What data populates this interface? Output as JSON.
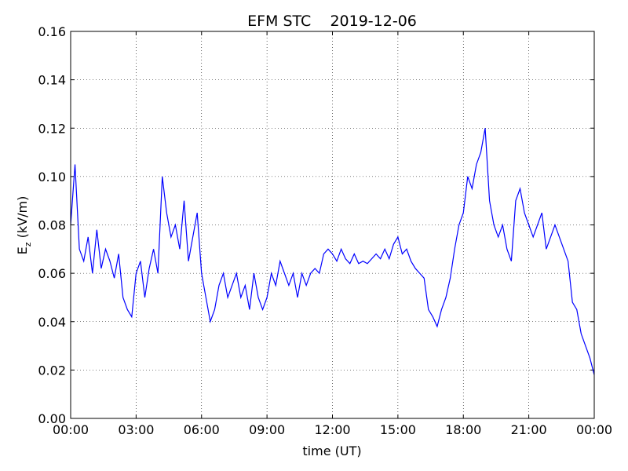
{
  "chart_data": {
    "type": "line",
    "title": "EFM STC    2019-12-06",
    "xlabel": "time (UT)",
    "ylabel": {
      "base": "E",
      "subscript": "z",
      "rest": " (kV/m)"
    },
    "x": [
      0,
      0.2,
      0.4,
      0.6,
      0.8,
      1,
      1.2,
      1.4,
      1.6,
      1.8,
      2,
      2.2,
      2.4,
      2.6,
      2.8,
      3,
      3.2,
      3.4,
      3.6,
      3.8,
      4,
      4.2,
      4.4,
      4.6,
      4.8,
      5,
      5.2,
      5.4,
      5.6,
      5.8,
      6,
      6.2,
      6.4,
      6.6,
      6.8,
      7,
      7.2,
      7.4,
      7.6,
      7.8,
      8,
      8.2,
      8.4,
      8.6,
      8.8,
      9,
      9.2,
      9.4,
      9.6,
      9.8,
      10,
      10.2,
      10.4,
      10.6,
      10.8,
      11,
      11.2,
      11.4,
      11.6,
      11.8,
      12,
      12.2,
      12.4,
      12.6,
      12.8,
      13,
      13.2,
      13.4,
      13.6,
      13.8,
      14,
      14.2,
      14.4,
      14.6,
      14.8,
      15,
      15.2,
      15.4,
      15.6,
      15.8,
      16,
      16.2,
      16.4,
      16.6,
      16.8,
      17,
      17.2,
      17.4,
      17.6,
      17.8,
      18,
      18.2,
      18.4,
      18.6,
      18.8,
      19,
      19.2,
      19.4,
      19.6,
      19.8,
      20,
      20.2,
      20.4,
      20.6,
      20.8,
      21,
      21.2,
      21.4,
      21.6,
      21.8,
      22,
      22.2,
      22.4,
      22.6,
      22.8,
      23,
      23.2,
      23.4,
      23.6,
      23.8,
      24
    ],
    "series": [
      {
        "name": "Ez",
        "color": "#0000ff",
        "values": [
          0.08,
          0.105,
          0.07,
          0.065,
          0.075,
          0.06,
          0.078,
          0.062,
          0.07,
          0.065,
          0.058,
          0.068,
          0.05,
          0.045,
          0.042,
          0.06,
          0.065,
          0.05,
          0.062,
          0.07,
          0.06,
          0.1,
          0.085,
          0.075,
          0.08,
          0.07,
          0.09,
          0.065,
          0.075,
          0.085,
          0.06,
          0.05,
          0.04,
          0.045,
          0.055,
          0.06,
          0.05,
          0.055,
          0.06,
          0.05,
          0.055,
          0.045,
          0.06,
          0.05,
          0.045,
          0.05,
          0.06,
          0.055,
          0.065,
          0.06,
          0.055,
          0.06,
          0.05,
          0.06,
          0.055,
          0.06,
          0.062,
          0.06,
          0.068,
          0.07,
          0.068,
          0.065,
          0.07,
          0.066,
          0.064,
          0.068,
          0.064,
          0.065,
          0.064,
          0.066,
          0.068,
          0.066,
          0.07,
          0.066,
          0.072,
          0.075,
          0.068,
          0.07,
          0.065,
          0.062,
          0.06,
          0.058,
          0.045,
          0.042,
          0.038,
          0.045,
          0.05,
          0.058,
          0.07,
          0.08,
          0.085,
          0.1,
          0.095,
          0.105,
          0.11,
          0.12,
          0.09,
          0.08,
          0.075,
          0.08,
          0.07,
          0.065,
          0.09,
          0.095,
          0.085,
          0.08,
          0.075,
          0.08,
          0.085,
          0.07,
          0.075,
          0.08,
          0.075,
          0.07,
          0.065,
          0.048,
          0.045,
          0.035,
          0.03,
          0.025,
          0.018
        ]
      }
    ],
    "xlim": [
      0,
      24
    ],
    "xticks": [
      {
        "value": 0,
        "label": "00:00"
      },
      {
        "value": 3,
        "label": "03:00"
      },
      {
        "value": 6,
        "label": "06:00"
      },
      {
        "value": 9,
        "label": "09:00"
      },
      {
        "value": 12,
        "label": "12:00"
      },
      {
        "value": 15,
        "label": "15:00"
      },
      {
        "value": 18,
        "label": "18:00"
      },
      {
        "value": 21,
        "label": "21:00"
      },
      {
        "value": 24,
        "label": "00:00"
      }
    ],
    "ylim": [
      0,
      0.16
    ],
    "yticks": [
      {
        "value": 0,
        "label": "0.00"
      },
      {
        "value": 0.02,
        "label": "0.02"
      },
      {
        "value": 0.04,
        "label": "0.04"
      },
      {
        "value": 0.06,
        "label": "0.06"
      },
      {
        "value": 0.08,
        "label": "0.08"
      },
      {
        "value": 0.1,
        "label": "0.10"
      },
      {
        "value": 0.12,
        "label": "0.12"
      },
      {
        "value": 0.14,
        "label": "0.14"
      },
      {
        "value": 0.16,
        "label": "0.16"
      }
    ],
    "grid": true
  }
}
